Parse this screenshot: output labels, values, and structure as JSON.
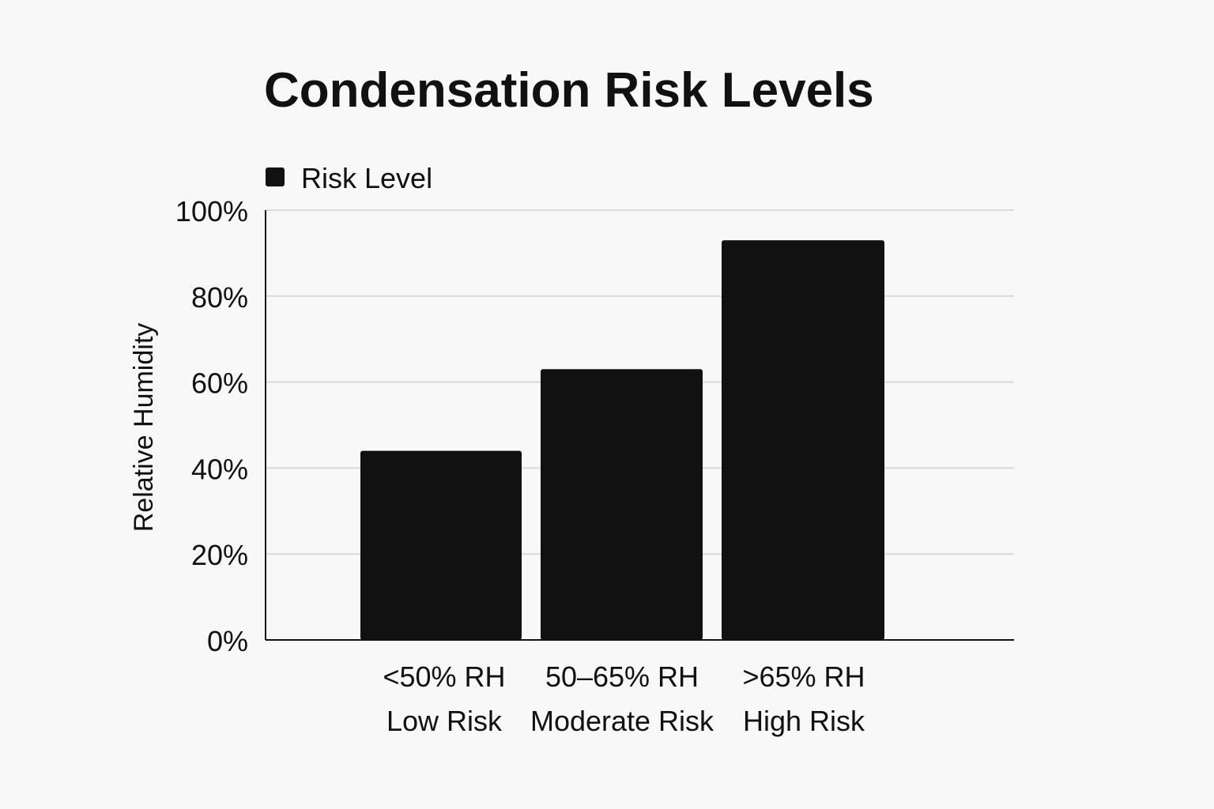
{
  "chart_data": {
    "type": "bar",
    "title": "Condensation Risk Levels",
    "legend": {
      "placement": "top-left",
      "entries": [
        "Risk Level"
      ]
    },
    "xlabel": "",
    "ylabel": "Relative Humidity",
    "ylim": [
      0,
      100
    ],
    "yticks": [
      0,
      20,
      40,
      60,
      80,
      100
    ],
    "ytick_labels": [
      "0%",
      "20%",
      "40%",
      "60%",
      "80%",
      "100%"
    ],
    "grid": true,
    "categories": [
      [
        "<50% RH",
        "Low Risk"
      ],
      [
        "50–65% RH",
        "Moderate Risk"
      ],
      [
        ">65% RH",
        "High Risk"
      ]
    ],
    "series": [
      {
        "name": "Risk Level",
        "values": [
          44,
          63,
          93
        ]
      }
    ],
    "colors": {
      "bar": "#111111",
      "grid": "#d9d9d9",
      "axis": "#111111",
      "text": "#111111",
      "background": "#f8f8f8"
    }
  }
}
